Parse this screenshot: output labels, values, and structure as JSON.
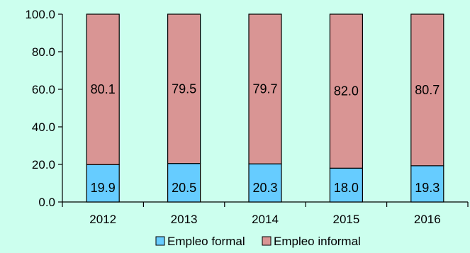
{
  "chart_data": {
    "type": "bar",
    "stacked": true,
    "categories": [
      "2012",
      "2013",
      "2014",
      "2015",
      "2016"
    ],
    "series": [
      {
        "name": "Empleo formal",
        "values": [
          19.9,
          20.5,
          20.3,
          18.0,
          19.3
        ],
        "color": "#66ccff"
      },
      {
        "name": "Empleo informal",
        "values": [
          80.1,
          79.5,
          79.7,
          82.0,
          80.7
        ],
        "color": "#d99594"
      }
    ],
    "ylim": [
      0,
      100
    ],
    "yticks": [
      "0.0",
      "20.0",
      "40.0",
      "60.0",
      "80.0",
      "100.0"
    ],
    "grid": false,
    "legend_position": "bottom"
  }
}
